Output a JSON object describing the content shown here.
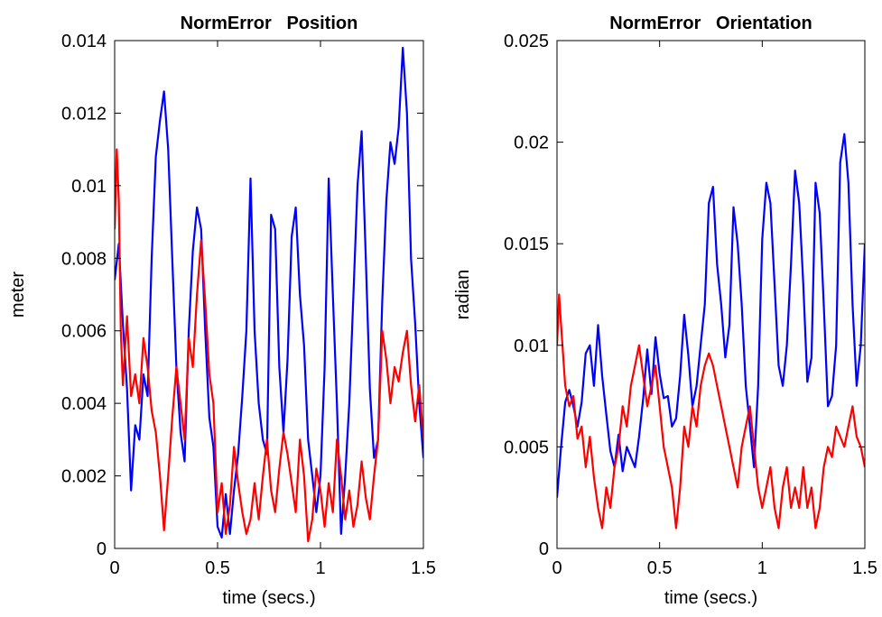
{
  "chart_data": [
    {
      "type": "line",
      "title": "NormError   Position",
      "xlabel": "time (secs.)",
      "ylabel": "meter",
      "xlim": [
        0,
        1.5
      ],
      "ylim": [
        0,
        0.014
      ],
      "xticks": [
        0,
        0.5,
        1,
        1.5
      ],
      "xtick_labels": [
        "0",
        "0.5",
        "1",
        "1.5"
      ],
      "yticks": [
        0,
        0.002,
        0.004,
        0.006,
        0.008,
        0.01,
        0.012,
        0.014
      ],
      "ytick_labels": [
        "0",
        "0.002",
        "0.004",
        "0.006",
        "0.008",
        "0.01",
        "0.012",
        "0.014"
      ],
      "grid": false,
      "series": [
        {
          "color": "#0000ff",
          "x": [
            0,
            0.02,
            0.04,
            0.06,
            0.08,
            0.1,
            0.12,
            0.14,
            0.16,
            0.18,
            0.2,
            0.22,
            0.24,
            0.26,
            0.28,
            0.3,
            0.32,
            0.34,
            0.36,
            0.38,
            0.4,
            0.42,
            0.44,
            0.46,
            0.48,
            0.5,
            0.52,
            0.54,
            0.56,
            0.58,
            0.6,
            0.62,
            0.64,
            0.66,
            0.68,
            0.7,
            0.72,
            0.74,
            0.76,
            0.78,
            0.8,
            0.82,
            0.84,
            0.86,
            0.88,
            0.9,
            0.92,
            0.94,
            0.96,
            0.98,
            1.0,
            1.02,
            1.04,
            1.06,
            1.08,
            1.1,
            1.12,
            1.14,
            1.16,
            1.18,
            1.2,
            1.22,
            1.24,
            1.26,
            1.28,
            1.3,
            1.32,
            1.34,
            1.36,
            1.38,
            1.4,
            1.42,
            1.44,
            1.46,
            1.48,
            1.5
          ],
          "y": [
            0.0074,
            0.0084,
            0.0062,
            0.0044,
            0.0016,
            0.0034,
            0.003,
            0.0048,
            0.0042,
            0.008,
            0.0108,
            0.0118,
            0.0126,
            0.011,
            0.008,
            0.005,
            0.0032,
            0.0024,
            0.006,
            0.0082,
            0.0094,
            0.0088,
            0.006,
            0.0036,
            0.0028,
            0.0006,
            0.0003,
            0.0015,
            0.0004,
            0.0016,
            0.0026,
            0.0042,
            0.006,
            0.0102,
            0.006,
            0.004,
            0.003,
            0.0026,
            0.0092,
            0.0088,
            0.005,
            0.0032,
            0.0052,
            0.0086,
            0.0094,
            0.007,
            0.0056,
            0.003,
            0.002,
            0.001,
            0.002,
            0.005,
            0.0102,
            0.007,
            0.004,
            0.0004,
            0.002,
            0.004,
            0.007,
            0.01,
            0.0115,
            0.008,
            0.0044,
            0.0025,
            0.003,
            0.0068,
            0.0096,
            0.0112,
            0.0106,
            0.0116,
            0.0138,
            0.012,
            0.008,
            0.0062,
            0.004,
            0.0025
          ]
        },
        {
          "color": "#ff0000",
          "x": [
            0,
            0.01,
            0.02,
            0.03,
            0.04,
            0.06,
            0.08,
            0.1,
            0.12,
            0.14,
            0.16,
            0.18,
            0.2,
            0.22,
            0.24,
            0.26,
            0.28,
            0.3,
            0.32,
            0.34,
            0.36,
            0.38,
            0.4,
            0.42,
            0.44,
            0.46,
            0.48,
            0.5,
            0.52,
            0.54,
            0.56,
            0.58,
            0.6,
            0.62,
            0.64,
            0.66,
            0.68,
            0.7,
            0.72,
            0.74,
            0.76,
            0.78,
            0.8,
            0.82,
            0.84,
            0.86,
            0.88,
            0.9,
            0.92,
            0.94,
            0.96,
            0.98,
            1.0,
            1.02,
            1.04,
            1.06,
            1.08,
            1.1,
            1.12,
            1.14,
            1.16,
            1.18,
            1.2,
            1.22,
            1.24,
            1.26,
            1.28,
            1.3,
            1.32,
            1.34,
            1.36,
            1.38,
            1.4,
            1.42,
            1.44,
            1.46,
            1.48,
            1.5
          ],
          "y": [
            0.0088,
            0.011,
            0.0096,
            0.006,
            0.0045,
            0.0064,
            0.0042,
            0.0048,
            0.004,
            0.0058,
            0.005,
            0.0038,
            0.0032,
            0.002,
            0.0005,
            0.002,
            0.0036,
            0.005,
            0.004,
            0.003,
            0.0058,
            0.005,
            0.007,
            0.0085,
            0.0068,
            0.0048,
            0.004,
            0.001,
            0.0018,
            0.0004,
            0.0012,
            0.0028,
            0.0018,
            0.001,
            0.0004,
            0.0008,
            0.0018,
            0.0008,
            0.002,
            0.003,
            0.0016,
            0.001,
            0.0022,
            0.0032,
            0.0026,
            0.0018,
            0.001,
            0.003,
            0.002,
            0.0002,
            0.0008,
            0.0022,
            0.0016,
            0.0006,
            0.0018,
            0.001,
            0.003,
            0.002,
            0.0008,
            0.0016,
            0.0006,
            0.0012,
            0.0024,
            0.0014,
            0.0008,
            0.002,
            0.003,
            0.006,
            0.0052,
            0.004,
            0.005,
            0.0046,
            0.0054,
            0.006,
            0.0045,
            0.0035,
            0.0045,
            0.003
          ]
        }
      ]
    },
    {
      "type": "line",
      "title": "NormError   Orientation",
      "xlabel": "time (secs.)",
      "ylabel": "radian",
      "xlim": [
        0,
        1.5
      ],
      "ylim": [
        0,
        0.025
      ],
      "xticks": [
        0,
        0.5,
        1,
        1.5
      ],
      "xtick_labels": [
        "0",
        "0.5",
        "1",
        "1.5"
      ],
      "yticks": [
        0,
        0.005,
        0.01,
        0.015,
        0.02,
        0.025
      ],
      "ytick_labels": [
        "0",
        "0.005",
        "0.01",
        "0.015",
        "0.02",
        "0.025"
      ],
      "grid": false,
      "series": [
        {
          "color": "#0000ff",
          "x": [
            0,
            0.02,
            0.04,
            0.06,
            0.08,
            0.1,
            0.12,
            0.14,
            0.16,
            0.18,
            0.2,
            0.22,
            0.24,
            0.26,
            0.28,
            0.3,
            0.32,
            0.34,
            0.36,
            0.38,
            0.4,
            0.42,
            0.44,
            0.46,
            0.48,
            0.5,
            0.52,
            0.54,
            0.56,
            0.58,
            0.6,
            0.62,
            0.64,
            0.66,
            0.68,
            0.7,
            0.72,
            0.74,
            0.76,
            0.78,
            0.8,
            0.82,
            0.84,
            0.86,
            0.88,
            0.9,
            0.92,
            0.94,
            0.96,
            0.98,
            1.0,
            1.02,
            1.04,
            1.06,
            1.08,
            1.1,
            1.12,
            1.14,
            1.16,
            1.18,
            1.2,
            1.22,
            1.24,
            1.26,
            1.28,
            1.3,
            1.32,
            1.34,
            1.36,
            1.38,
            1.4,
            1.42,
            1.44,
            1.46,
            1.48,
            1.5
          ],
          "y": [
            0.0025,
            0.005,
            0.0072,
            0.0078,
            0.007,
            0.006,
            0.0072,
            0.0096,
            0.01,
            0.008,
            0.011,
            0.0085,
            0.0066,
            0.0048,
            0.004,
            0.0056,
            0.0038,
            0.005,
            0.0045,
            0.004,
            0.0055,
            0.0074,
            0.0098,
            0.0076,
            0.0104,
            0.0086,
            0.0074,
            0.0075,
            0.006,
            0.0064,
            0.0085,
            0.0115,
            0.0095,
            0.007,
            0.008,
            0.01,
            0.012,
            0.017,
            0.0178,
            0.014,
            0.012,
            0.0094,
            0.011,
            0.0168,
            0.015,
            0.012,
            0.008,
            0.006,
            0.004,
            0.008,
            0.0152,
            0.018,
            0.017,
            0.013,
            0.009,
            0.008,
            0.01,
            0.014,
            0.0186,
            0.017,
            0.013,
            0.0082,
            0.0094,
            0.018,
            0.0165,
            0.012,
            0.007,
            0.0075,
            0.01,
            0.019,
            0.0204,
            0.018,
            0.012,
            0.008,
            0.01,
            0.015
          ]
        },
        {
          "color": "#ff0000",
          "x": [
            0,
            0.01,
            0.02,
            0.04,
            0.06,
            0.08,
            0.1,
            0.12,
            0.14,
            0.16,
            0.18,
            0.2,
            0.22,
            0.24,
            0.26,
            0.28,
            0.3,
            0.32,
            0.34,
            0.36,
            0.38,
            0.4,
            0.42,
            0.44,
            0.46,
            0.48,
            0.5,
            0.52,
            0.54,
            0.56,
            0.58,
            0.6,
            0.62,
            0.64,
            0.66,
            0.68,
            0.7,
            0.72,
            0.74,
            0.76,
            0.78,
            0.8,
            0.82,
            0.84,
            0.86,
            0.88,
            0.9,
            0.92,
            0.94,
            0.96,
            0.98,
            1.0,
            1.02,
            1.04,
            1.06,
            1.08,
            1.1,
            1.12,
            1.14,
            1.16,
            1.18,
            1.2,
            1.22,
            1.24,
            1.26,
            1.28,
            1.3,
            1.32,
            1.34,
            1.36,
            1.38,
            1.4,
            1.42,
            1.44,
            1.46,
            1.48,
            1.5
          ],
          "y": [
            0.01,
            0.0125,
            0.011,
            0.008,
            0.007,
            0.0075,
            0.0054,
            0.006,
            0.004,
            0.0055,
            0.0035,
            0.002,
            0.001,
            0.003,
            0.002,
            0.004,
            0.005,
            0.007,
            0.006,
            0.008,
            0.009,
            0.01,
            0.0085,
            0.007,
            0.008,
            0.009,
            0.007,
            0.005,
            0.004,
            0.003,
            0.001,
            0.003,
            0.006,
            0.005,
            0.007,
            0.006,
            0.008,
            0.009,
            0.0096,
            0.009,
            0.008,
            0.007,
            0.006,
            0.005,
            0.004,
            0.003,
            0.005,
            0.006,
            0.007,
            0.005,
            0.003,
            0.002,
            0.003,
            0.004,
            0.002,
            0.001,
            0.003,
            0.004,
            0.002,
            0.003,
            0.002,
            0.004,
            0.002,
            0.003,
            0.001,
            0.002,
            0.004,
            0.005,
            0.0045,
            0.006,
            0.0055,
            0.005,
            0.006,
            0.007,
            0.0055,
            0.005,
            0.004
          ]
        }
      ]
    }
  ]
}
